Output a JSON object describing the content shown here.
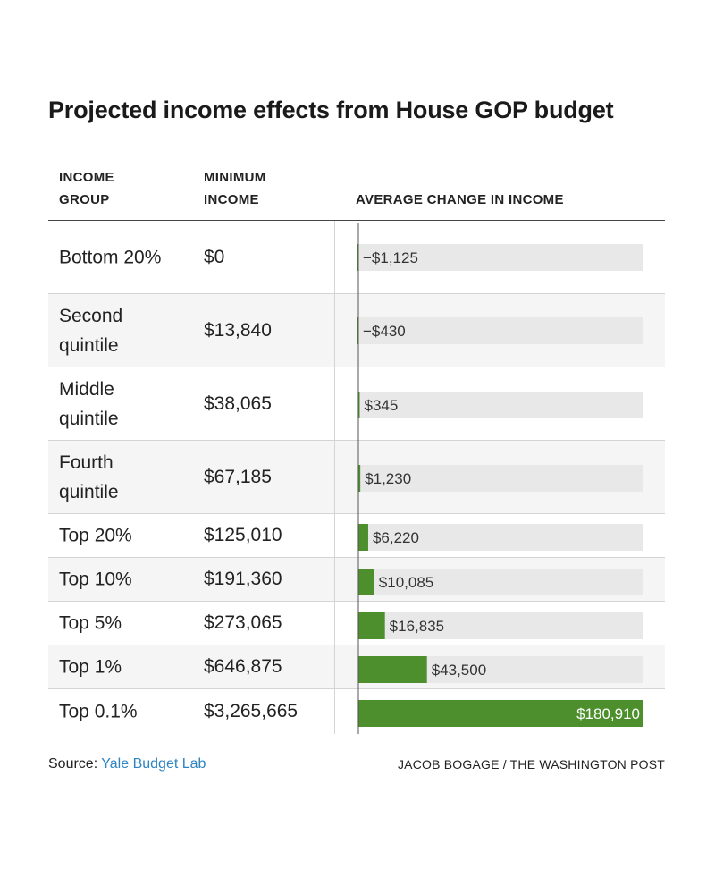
{
  "title": "Projected income effects from House GOP budget",
  "headers": {
    "group_line1": "INCOME",
    "group_line2": "GROUP",
    "min_line1": "MINIMUM",
    "min_line2": "INCOME",
    "change": "AVERAGE CHANGE IN INCOME"
  },
  "rows": [
    {
      "group": "Bottom 20%",
      "min_income": "$0",
      "change_label": "−$1,125"
    },
    {
      "group": "Second quintile",
      "min_income": "$13,840",
      "change_label": "−$430"
    },
    {
      "group": "Middle quintile",
      "min_income": "$38,065",
      "change_label": "$345"
    },
    {
      "group": "Fourth quintile",
      "min_income": "$67,185",
      "change_label": "$1,230"
    },
    {
      "group": "Top 20%",
      "min_income": "$125,010",
      "change_label": "$6,220"
    },
    {
      "group": "Top 10%",
      "min_income": "$191,360",
      "change_label": "$10,085"
    },
    {
      "group": "Top 5%",
      "min_income": "$273,065",
      "change_label": "$16,835"
    },
    {
      "group": "Top 1%",
      "min_income": "$646,875",
      "change_label": "$43,500"
    },
    {
      "group": "Top 0.1%",
      "min_income": "$3,265,665",
      "change_label": "$180,910"
    }
  ],
  "chart_data": {
    "type": "bar",
    "orientation": "horizontal",
    "categories": [
      "Bottom 20%",
      "Second quintile",
      "Middle quintile",
      "Fourth quintile",
      "Top 20%",
      "Top 10%",
      "Top 5%",
      "Top 1%",
      "Top 0.1%"
    ],
    "values": [
      -1125,
      -430,
      345,
      1230,
      6220,
      10085,
      16835,
      43500,
      180910
    ],
    "xlabel": "AVERAGE CHANGE IN INCOME",
    "xlim": [
      -1125,
      180910
    ],
    "grid": false,
    "colors": {
      "bar": "#4c8f2c",
      "track": "#e8e8e8",
      "zero_line": "#555555",
      "label_inside": "#ffffff",
      "label": "#333333"
    }
  },
  "footer": {
    "source_prefix": "Source: ",
    "source_link": "Yale Budget Lab",
    "credit": "JACOB BOGAGE / THE WASHINGTON POST"
  },
  "colors": {
    "link": "#2e84c2",
    "row_alt": "#f5f5f5",
    "divider": "#d4d4d4"
  }
}
